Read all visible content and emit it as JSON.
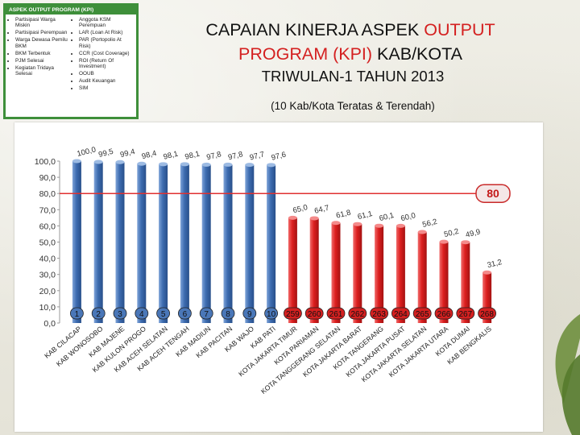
{
  "kpi_box": {
    "title": "ASPEK OUTPUT PROGRAM (KPI)",
    "left_items": [
      "Partisipasi Warga Miskin",
      "Partisipasi Perempuan",
      "Warga Dewasa Pemilu BKM",
      "BKM Terbentuk",
      "PJM Selesai",
      "Kegiatan Tridaya Selesai"
    ],
    "right_items": [
      "Anggota KSM Perempuan",
      "LAR (Loan At Risk)",
      "PAR (Portopolio At Risk)",
      "CCR (Cost Coverage)",
      "ROI (Return Of Investment)",
      "OOUB",
      "Audit Keuangan",
      "SIM"
    ]
  },
  "header": {
    "title_part1": "CAPAIAN KINERJA ASPEK",
    "title_part2": "OUTPUT",
    "title_part3": "PROGRAM (KPI)",
    "title_part4": "KAB/KOTA",
    "subtitle": "TRIWULAN-1 TAHUN 2013",
    "caption": "(10 Kab/Kota Teratas & Terendah)"
  },
  "colors": {
    "accent_red": "#d42020",
    "top_bar": "#3d6cb0",
    "bottom_bar": "#dc1f1f",
    "target_line": "#e03030",
    "kpi_green": "#3e8f3a"
  },
  "chart_data": {
    "type": "bar",
    "categories": [
      "KAB CILACAP",
      "KAB WONOSOBO",
      "KAB MAJENE",
      "KAB KULON PROGO",
      "KAB ACEH SELATAN",
      "KAB ACEH TENGAH",
      "KAB MADIUN",
      "KAB PACITAN",
      "KAB WAJO",
      "KAB PATI",
      "KOTA JAKARTA TIMUR",
      "KOTA PARIAMAN",
      "KOTA TANGGERANG SELATAN",
      "KOTA JAKARTA BARAT",
      "KOTA TANGERANG",
      "KOTA JAKARTA PUSAT",
      "KOTA JAKARTA SELATAN",
      "KOTA JAKARTA UTARA",
      "KOTA DUMAI",
      "KAB BENGKALIS"
    ],
    "values": [
      100.0,
      99.5,
      99.4,
      98.4,
      98.1,
      98.1,
      97.8,
      97.8,
      97.7,
      97.6,
      65.0,
      64.7,
      61.8,
      61.1,
      60.1,
      60.0,
      56.2,
      50.2,
      49.9,
      31.2
    ],
    "value_labels": [
      "100,0",
      "99,5",
      "99,4",
      "98,4",
      "98,1",
      "98,1",
      "97,8",
      "97,8",
      "97,7",
      "97,6",
      "65,0",
      "64,7",
      "61,8",
      "61,1",
      "60,1",
      "60,0",
      "56,2",
      "50,2",
      "49,9",
      "31,2"
    ],
    "ranks": [
      "1",
      "2",
      "3",
      "4",
      "5",
      "6",
      "7",
      "8",
      "9",
      "10",
      "259",
      "260",
      "261",
      "262",
      "263",
      "264",
      "265",
      "266",
      "267",
      "268"
    ],
    "groups": [
      "top",
      "top",
      "top",
      "top",
      "top",
      "top",
      "top",
      "top",
      "top",
      "top",
      "bottom",
      "bottom",
      "bottom",
      "bottom",
      "bottom",
      "bottom",
      "bottom",
      "bottom",
      "bottom",
      "bottom"
    ],
    "y_ticks": [
      "0,0",
      "10,0",
      "20,0",
      "30,0",
      "40,0",
      "50,0",
      "60,0",
      "70,0",
      "80,0",
      "90,0",
      "100,0"
    ],
    "ylim": [
      0,
      100
    ],
    "target": 80,
    "target_label": "80",
    "grid": false
  }
}
